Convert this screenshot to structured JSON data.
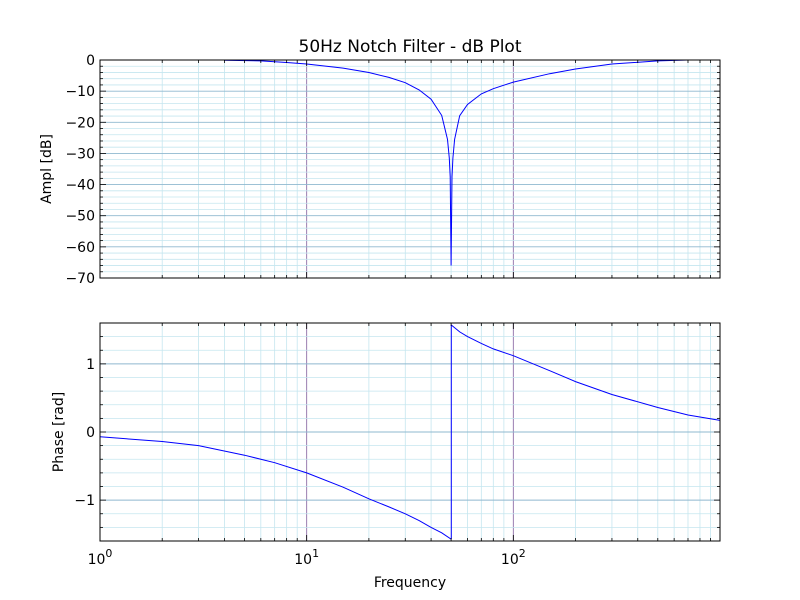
{
  "chart_data": [
    {
      "type": "line",
      "title": "50Hz Notch Filter - dB Plot",
      "xlabel": "",
      "ylabel": "Ampl [dB]",
      "x_scale": "log",
      "xlim": [
        1,
        1000
      ],
      "ylim": [
        -70,
        0
      ],
      "grid": {
        "major": true,
        "minor": true
      },
      "yticks": [
        0,
        -10,
        -20,
        -30,
        -40,
        -50,
        -60,
        -70
      ],
      "ytick_labels": [
        "0",
        "−10",
        "−20",
        "−30",
        "−40",
        "−50",
        "−60",
        "−70"
      ],
      "line_color": "#0000ff",
      "series": [
        {
          "x": [
            4,
            6,
            8,
            10,
            15,
            20,
            25,
            30,
            35,
            40,
            45,
            48,
            49,
            49.5,
            50,
            50.5,
            51,
            52,
            55,
            60,
            70,
            80,
            100,
            150,
            200,
            300,
            500,
            700
          ],
          "values": [
            -0.1,
            -0.3,
            -0.8,
            -1.3,
            -2.6,
            -4,
            -5.6,
            -7.3,
            -9.6,
            -12.6,
            -17.8,
            -25.5,
            -31.5,
            -37.5,
            -66,
            -37.5,
            -31.5,
            -25.5,
            -17.9,
            -14.3,
            -10.9,
            -9.2,
            -7.1,
            -4.4,
            -2.9,
            -1.3,
            -0.3,
            0
          ]
        }
      ]
    },
    {
      "type": "line",
      "title": "",
      "xlabel": "Frequency",
      "ylabel": "Phase [rad]",
      "x_scale": "log",
      "xlim": [
        1,
        1000
      ],
      "ylim": [
        -1.6,
        1.6
      ],
      "grid": {
        "major": true,
        "minor": true
      },
      "yticks": [
        1,
        0,
        -1
      ],
      "ytick_labels": [
        "1",
        "0",
        "−1"
      ],
      "xticks": [
        1,
        10,
        100
      ],
      "xtick_labels": [
        {
          "base": "10",
          "exp": "0"
        },
        {
          "base": "10",
          "exp": "1"
        },
        {
          "base": "10",
          "exp": "2"
        }
      ],
      "line_color": "#0000ff",
      "series": [
        {
          "x": [
            1,
            2,
            3,
            5,
            7,
            10,
            15,
            20,
            25,
            30,
            35,
            40,
            45,
            49.9,
            50.1,
            55,
            60,
            70,
            80,
            100,
            150,
            200,
            300,
            500,
            700,
            1000
          ],
          "values": [
            -0.07,
            -0.14,
            -0.2,
            -0.34,
            -0.45,
            -0.6,
            -0.81,
            -0.98,
            -1.1,
            -1.2,
            -1.3,
            -1.4,
            -1.48,
            -1.57,
            1.57,
            1.47,
            1.4,
            1.3,
            1.22,
            1.12,
            0.9,
            0.74,
            0.55,
            0.36,
            0.25,
            0.17
          ]
        }
      ]
    }
  ]
}
